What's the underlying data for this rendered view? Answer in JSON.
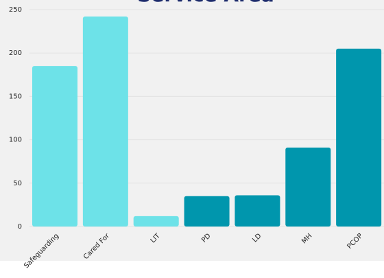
{
  "chart_data": {
    "type": "bar",
    "title": "Service Area",
    "categories": [
      "Safeguarding",
      "Cared For",
      "LIT",
      "PD",
      "LD",
      "MH",
      "PCOP"
    ],
    "values": [
      185,
      242,
      12,
      35,
      36,
      91,
      205
    ],
    "colors": [
      "#6de2e8",
      "#6de2e8",
      "#6de2e8",
      "#0096ad",
      "#0096ad",
      "#0096ad",
      "#0096ad"
    ],
    "ylim": [
      0,
      250
    ],
    "yticks": [
      0,
      50,
      100,
      150,
      200,
      250
    ],
    "grid": true
  }
}
